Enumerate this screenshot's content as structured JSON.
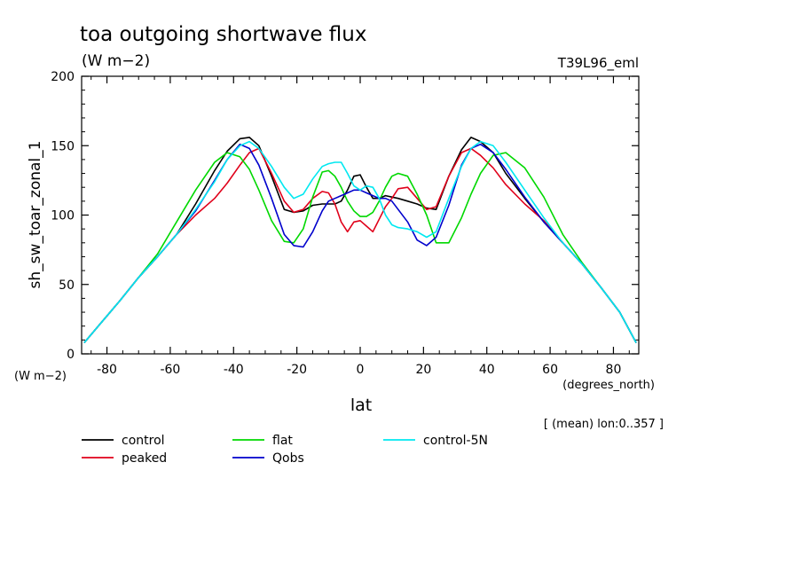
{
  "chart_data": {
    "type": "line",
    "title": "toa outgoing shortwave flux",
    "units_label": "(W m−2)",
    "experiment_label": "T39L96_eml",
    "ylabel": "sh_sw_toar_zonal_1",
    "y_units_label": "(W m−2)",
    "xlabel": "lat",
    "x_units_label": "(degrees_north)",
    "subset_note": "[ (mean) lon:0..357 ]",
    "xlim": [
      -88,
      88
    ],
    "ylim": [
      0,
      200
    ],
    "x_ticks": [
      -80,
      -60,
      -40,
      -20,
      0,
      20,
      40,
      60,
      80
    ],
    "y_ticks": [
      0,
      50,
      100,
      150,
      200
    ],
    "grid": false,
    "legend_position": "bottom",
    "series": [
      {
        "name": "control",
        "color": "#000000",
        "x": [
          -87.2,
          -82,
          -76,
          -70,
          -64,
          -58,
          -52,
          -46,
          -42,
          -38,
          -35,
          -32,
          -28,
          -24,
          -21,
          -18,
          -15,
          -12,
          -10,
          -8,
          -6,
          -4,
          -2,
          0,
          2,
          4,
          6,
          8,
          10,
          12,
          15,
          18,
          21,
          24,
          28,
          32,
          35,
          38,
          42,
          46,
          52,
          58,
          64,
          70,
          76,
          82,
          87.2
        ],
        "y": [
          8,
          22,
          38,
          55,
          70,
          86,
          108,
          132,
          146,
          155,
          156,
          150,
          128,
          104,
          102,
          103,
          107,
          108,
          108,
          108,
          110,
          118,
          128,
          129,
          120,
          112,
          112,
          114,
          113,
          112,
          110,
          108,
          105,
          104,
          128,
          147,
          156,
          153,
          145,
          130,
          112,
          95,
          80,
          65,
          48,
          30,
          8
        ]
      },
      {
        "name": "peaked",
        "color": "#e0001a",
        "x": [
          -87.2,
          -82,
          -76,
          -70,
          -64,
          -58,
          -52,
          -46,
          -42,
          -38,
          -35,
          -32,
          -28,
          -24,
          -21,
          -18,
          -15,
          -12,
          -10,
          -8,
          -6,
          -4,
          -2,
          0,
          2,
          4,
          6,
          8,
          10,
          12,
          15,
          18,
          21,
          24,
          28,
          32,
          35,
          38,
          42,
          46,
          52,
          58,
          64,
          70,
          76,
          82,
          87.2
        ],
        "y": [
          8,
          22,
          38,
          55,
          70,
          86,
          100,
          112,
          123,
          136,
          145,
          148,
          130,
          110,
          102,
          104,
          112,
          117,
          116,
          108,
          95,
          88,
          95,
          96,
          92,
          88,
          97,
          106,
          112,
          119,
          120,
          112,
          104,
          106,
          128,
          145,
          148,
          143,
          134,
          122,
          108,
          96,
          80,
          65,
          48,
          30,
          8
        ]
      },
      {
        "name": "flat",
        "color": "#00d800",
        "x": [
          -87.2,
          -82,
          -76,
          -70,
          -64,
          -58,
          -52,
          -46,
          -42,
          -38,
          -35,
          -32,
          -28,
          -24,
          -21,
          -18,
          -15,
          -12,
          -10,
          -8,
          -6,
          -4,
          -2,
          0,
          2,
          4,
          6,
          8,
          10,
          12,
          15,
          18,
          21,
          24,
          28,
          32,
          35,
          38,
          42,
          46,
          52,
          58,
          64,
          70,
          76,
          82,
          87.2
        ],
        "y": [
          8,
          22,
          38,
          55,
          72,
          95,
          118,
          138,
          145,
          142,
          133,
          118,
          96,
          81,
          80,
          90,
          113,
          131,
          132,
          128,
          120,
          110,
          103,
          99,
          99,
          102,
          110,
          120,
          128,
          130,
          128,
          115,
          100,
          80,
          80,
          98,
          115,
          130,
          143,
          145,
          134,
          113,
          86,
          66,
          48,
          30,
          8
        ]
      },
      {
        "name": "Qobs",
        "color": "#0000cc",
        "x": [
          -87.2,
          -82,
          -76,
          -70,
          -64,
          -58,
          -52,
          -46,
          -42,
          -38,
          -35,
          -32,
          -28,
          -24,
          -21,
          -18,
          -15,
          -12,
          -10,
          -8,
          -6,
          -4,
          -2,
          0,
          2,
          4,
          6,
          8,
          10,
          12,
          15,
          18,
          21,
          24,
          28,
          32,
          35,
          38,
          42,
          46,
          52,
          58,
          64,
          70,
          76,
          82,
          87.2
        ],
        "y": [
          8,
          22,
          38,
          55,
          70,
          86,
          103,
          125,
          140,
          151,
          148,
          136,
          112,
          86,
          78,
          77,
          88,
          103,
          110,
          112,
          114,
          116,
          118,
          118,
          116,
          114,
          112,
          112,
          110,
          104,
          95,
          82,
          78,
          84,
          107,
          136,
          148,
          151,
          145,
          133,
          113,
          95,
          80,
          65,
          48,
          30,
          8
        ]
      },
      {
        "name": "control-5N",
        "color": "#00e8f0",
        "x": [
          -87.2,
          -82,
          -76,
          -70,
          -64,
          -58,
          -52,
          -46,
          -42,
          -38,
          -35,
          -32,
          -28,
          -24,
          -21,
          -18,
          -15,
          -12,
          -10,
          -8,
          -6,
          -4,
          -2,
          0,
          2,
          4,
          6,
          8,
          10,
          12,
          15,
          18,
          21,
          24,
          28,
          32,
          35,
          38,
          42,
          46,
          52,
          58,
          64,
          70,
          76,
          82,
          87.2
        ],
        "y": [
          8,
          22,
          38,
          55,
          70,
          86,
          104,
          124,
          140,
          150,
          153,
          148,
          135,
          120,
          112,
          115,
          126,
          135,
          137,
          138,
          138,
          130,
          121,
          118,
          121,
          120,
          112,
          100,
          93,
          91,
          90,
          88,
          84,
          88,
          112,
          135,
          148,
          153,
          150,
          138,
          118,
          98,
          80,
          65,
          48,
          30,
          8
        ]
      }
    ]
  }
}
